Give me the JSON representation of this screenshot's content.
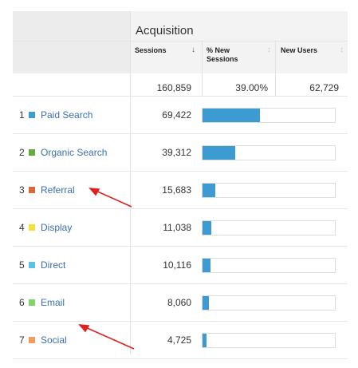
{
  "header": {
    "group_title": "Acquisition",
    "columns": [
      {
        "label": "Sessions",
        "sort_icon": "↓"
      },
      {
        "label": "% New\nSessions",
        "sort_icon": "↕"
      },
      {
        "label": "New Users",
        "sort_icon": "↕"
      }
    ]
  },
  "totals": {
    "sessions": "160,859",
    "pct_new": "39.00%",
    "new_users": "62,729"
  },
  "rows": [
    {
      "num": "1",
      "source": "Paid Search",
      "color": "#3d9bd1",
      "sessions": "69,422",
      "bar_fraction": 0.4316
    },
    {
      "num": "2",
      "source": "Organic Search",
      "color": "#6aaa3a",
      "sessions": "39,312",
      "bar_fraction": 0.2444
    },
    {
      "num": "3",
      "source": "Referral",
      "color": "#d9673a",
      "sessions": "15,683",
      "bar_fraction": 0.0975
    },
    {
      "num": "4",
      "source": "Display",
      "color": "#f2e23c",
      "sessions": "11,038",
      "bar_fraction": 0.0686
    },
    {
      "num": "5",
      "source": "Direct",
      "color": "#5bc0e8",
      "sessions": "10,116",
      "bar_fraction": 0.0629
    },
    {
      "num": "6",
      "source": "Email",
      "color": "#7fd46a",
      "sessions": "8,060",
      "bar_fraction": 0.0501
    },
    {
      "num": "7",
      "source": "Social",
      "color": "#f39c5f",
      "sessions": "4,725",
      "bar_fraction": 0.0294
    }
  ],
  "annotations": {
    "arrow_color": "#e02020"
  }
}
